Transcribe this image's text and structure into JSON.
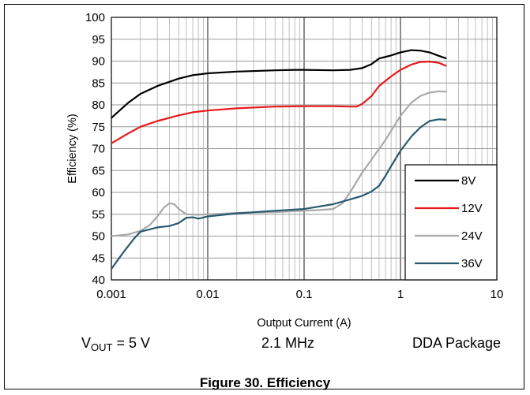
{
  "chart_data": {
    "type": "line",
    "xlabel": "Output Current (A)",
    "ylabel": "Efficiency (%)",
    "x_scale": "log",
    "xlim": [
      0.001,
      10
    ],
    "ylim": [
      40,
      100
    ],
    "x_ticks": [
      "0.001",
      "0.01",
      "0.1",
      "1",
      "10"
    ],
    "y_ticks": [
      "40",
      "45",
      "50",
      "55",
      "60",
      "65",
      "70",
      "75",
      "80",
      "85",
      "90",
      "95",
      "100"
    ],
    "grid": true,
    "legend_position": "bottom-right",
    "series": [
      {
        "name": "8V",
        "color": "#000000",
        "points": [
          [
            0.001,
            77
          ],
          [
            0.0015,
            80.5
          ],
          [
            0.002,
            82.5
          ],
          [
            0.003,
            84.3
          ],
          [
            0.005,
            86
          ],
          [
            0.007,
            86.8
          ],
          [
            0.01,
            87.2
          ],
          [
            0.02,
            87.6
          ],
          [
            0.05,
            87.9
          ],
          [
            0.08,
            88
          ],
          [
            0.1,
            88
          ],
          [
            0.2,
            87.9
          ],
          [
            0.3,
            88
          ],
          [
            0.4,
            88.4
          ],
          [
            0.5,
            89.3
          ],
          [
            0.6,
            90.6
          ],
          [
            0.8,
            91.3
          ],
          [
            1,
            92
          ],
          [
            1.3,
            92.5
          ],
          [
            1.6,
            92.4
          ],
          [
            2,
            92
          ],
          [
            2.5,
            91.2
          ],
          [
            3,
            90.6
          ]
        ]
      },
      {
        "name": "12V",
        "color": "#e8191c",
        "points": [
          [
            0.001,
            71.2
          ],
          [
            0.0015,
            73.5
          ],
          [
            0.002,
            75
          ],
          [
            0.003,
            76.3
          ],
          [
            0.005,
            77.6
          ],
          [
            0.007,
            78.3
          ],
          [
            0.01,
            78.7
          ],
          [
            0.02,
            79.2
          ],
          [
            0.05,
            79.6
          ],
          [
            0.1,
            79.7
          ],
          [
            0.2,
            79.7
          ],
          [
            0.3,
            79.6
          ],
          [
            0.35,
            79.6
          ],
          [
            0.4,
            80.2
          ],
          [
            0.5,
            82
          ],
          [
            0.6,
            84.3
          ],
          [
            0.8,
            86.5
          ],
          [
            1,
            88
          ],
          [
            1.3,
            89.2
          ],
          [
            1.6,
            89.8
          ],
          [
            2,
            89.9
          ],
          [
            2.5,
            89.6
          ],
          [
            3,
            88.9
          ]
        ]
      },
      {
        "name": "24V",
        "color": "#a9a9a9",
        "points": [
          [
            0.001,
            50
          ],
          [
            0.0015,
            50.4
          ],
          [
            0.002,
            51.2
          ],
          [
            0.0025,
            52.5
          ],
          [
            0.003,
            54.5
          ],
          [
            0.0035,
            56.5
          ],
          [
            0.004,
            57.5
          ],
          [
            0.0045,
            57.3
          ],
          [
            0.005,
            56.2
          ],
          [
            0.006,
            55
          ],
          [
            0.008,
            54.9
          ],
          [
            0.01,
            55
          ],
          [
            0.02,
            55.3
          ],
          [
            0.05,
            55.5
          ],
          [
            0.1,
            55.8
          ],
          [
            0.15,
            56
          ],
          [
            0.2,
            56.2
          ],
          [
            0.25,
            57.5
          ],
          [
            0.3,
            60
          ],
          [
            0.4,
            64.5
          ],
          [
            0.5,
            67.5
          ],
          [
            0.7,
            72
          ],
          [
            1,
            77.5
          ],
          [
            1.3,
            80.5
          ],
          [
            1.6,
            82
          ],
          [
            2,
            82.8
          ],
          [
            2.5,
            83.1
          ],
          [
            3,
            83
          ]
        ]
      },
      {
        "name": "36V",
        "color": "#285a6e",
        "points": [
          [
            0.001,
            42.5
          ],
          [
            0.0013,
            46
          ],
          [
            0.0017,
            49.3
          ],
          [
            0.002,
            51
          ],
          [
            0.003,
            52
          ],
          [
            0.004,
            52.3
          ],
          [
            0.005,
            53
          ],
          [
            0.006,
            54.2
          ],
          [
            0.007,
            54.3
          ],
          [
            0.008,
            54
          ],
          [
            0.01,
            54.5
          ],
          [
            0.02,
            55.2
          ],
          [
            0.05,
            55.8
          ],
          [
            0.1,
            56.2
          ],
          [
            0.2,
            57.3
          ],
          [
            0.3,
            58.4
          ],
          [
            0.4,
            59.2
          ],
          [
            0.5,
            60.2
          ],
          [
            0.6,
            61.5
          ],
          [
            0.7,
            63.8
          ],
          [
            0.8,
            66
          ],
          [
            1,
            69.5
          ],
          [
            1.3,
            72.8
          ],
          [
            1.6,
            74.8
          ],
          [
            2,
            76.3
          ],
          [
            2.5,
            76.7
          ],
          [
            3,
            76.6
          ]
        ]
      }
    ]
  },
  "conditions": {
    "vout_label": "V",
    "vout_sub": "OUT",
    "vout_value": " = 5 V",
    "frequency": "2.1 MHz",
    "package": "DDA Package"
  },
  "figure_caption": "Figure 30. Efficiency"
}
